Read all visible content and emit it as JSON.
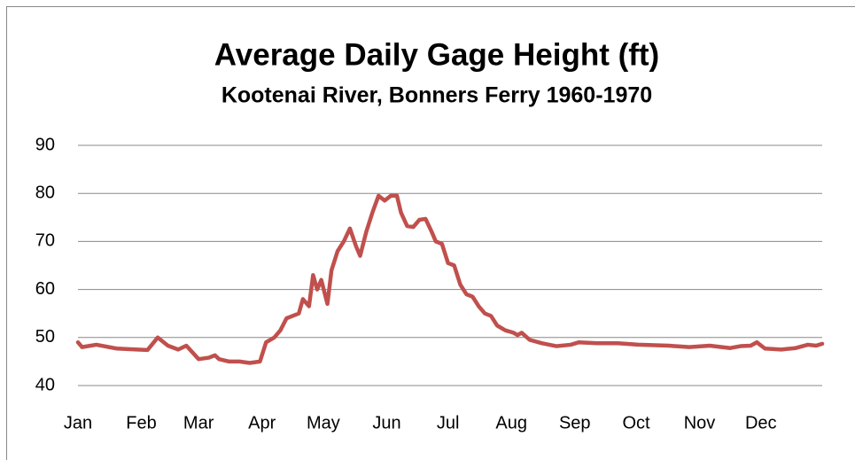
{
  "chart_data": {
    "type": "line",
    "title": "Average Daily Gage Height (ft)",
    "subtitle": "Kootenai River, Bonners Ferry 1960-1970",
    "x": [
      1,
      3,
      10,
      20,
      30,
      35,
      40,
      45,
      50,
      54,
      60,
      65,
      68,
      70,
      75,
      80,
      85,
      90,
      93,
      97,
      100,
      103,
      106,
      109,
      111,
      114,
      116,
      118,
      120,
      123,
      125,
      128,
      131,
      134,
      137,
      139,
      142,
      145,
      148,
      151,
      154,
      157,
      159,
      162,
      165,
      168,
      171,
      174,
      176,
      179,
      182,
      185,
      188,
      191,
      194,
      197,
      200,
      203,
      206,
      210,
      214,
      216,
      218,
      222,
      228,
      235,
      242,
      246,
      255,
      265,
      275,
      290,
      300,
      310,
      320,
      325,
      330,
      333,
      337,
      345,
      352,
      358,
      362,
      365
    ],
    "series": [
      {
        "name": "Average Daily Gage Height",
        "color": "#c0504d",
        "values": [
          49,
          48,
          48.5,
          47.7,
          47.5,
          47.4,
          50,
          48.3,
          47.5,
          48.3,
          45.5,
          45.8,
          46.3,
          45.5,
          45,
          45,
          44.7,
          45,
          49,
          50,
          51.5,
          54,
          54.5,
          55,
          58,
          56.5,
          63,
          60,
          62,
          57,
          64,
          68,
          70,
          72.7,
          69,
          67,
          72,
          76,
          79.5,
          78.5,
          79.5,
          79.5,
          76,
          73.2,
          73,
          74.5,
          74.7,
          72,
          70,
          69.5,
          65.5,
          65,
          61,
          59,
          58.5,
          56.5,
          55,
          54.5,
          52.5,
          51.5,
          51,
          50.5,
          51,
          49.5,
          48.8,
          48.2,
          48.5,
          49,
          48.8,
          48.8,
          48.5,
          48.3,
          48,
          48.3,
          47.8,
          48.2,
          48.3,
          49,
          47.7,
          47.5,
          47.8,
          48.5,
          48.3,
          48.7
        ]
      }
    ],
    "xlim": [
      1,
      365
    ],
    "xticks": [
      {
        "value": 1,
        "label": "Jan"
      },
      {
        "value": 32,
        "label": "Feb"
      },
      {
        "value": 60,
        "label": "Mar"
      },
      {
        "value": 91,
        "label": "Apr"
      },
      {
        "value": 121,
        "label": "May"
      },
      {
        "value": 152,
        "label": "Jun"
      },
      {
        "value": 182,
        "label": "Jul"
      },
      {
        "value": 213,
        "label": "Aug"
      },
      {
        "value": 244,
        "label": "Sep"
      },
      {
        "value": 274,
        "label": "Oct"
      },
      {
        "value": 305,
        "label": "Nov"
      },
      {
        "value": 335,
        "label": "Dec"
      }
    ],
    "ylim": [
      40,
      90
    ],
    "yticks": [
      40,
      50,
      60,
      70,
      80,
      90
    ],
    "grid": true
  }
}
